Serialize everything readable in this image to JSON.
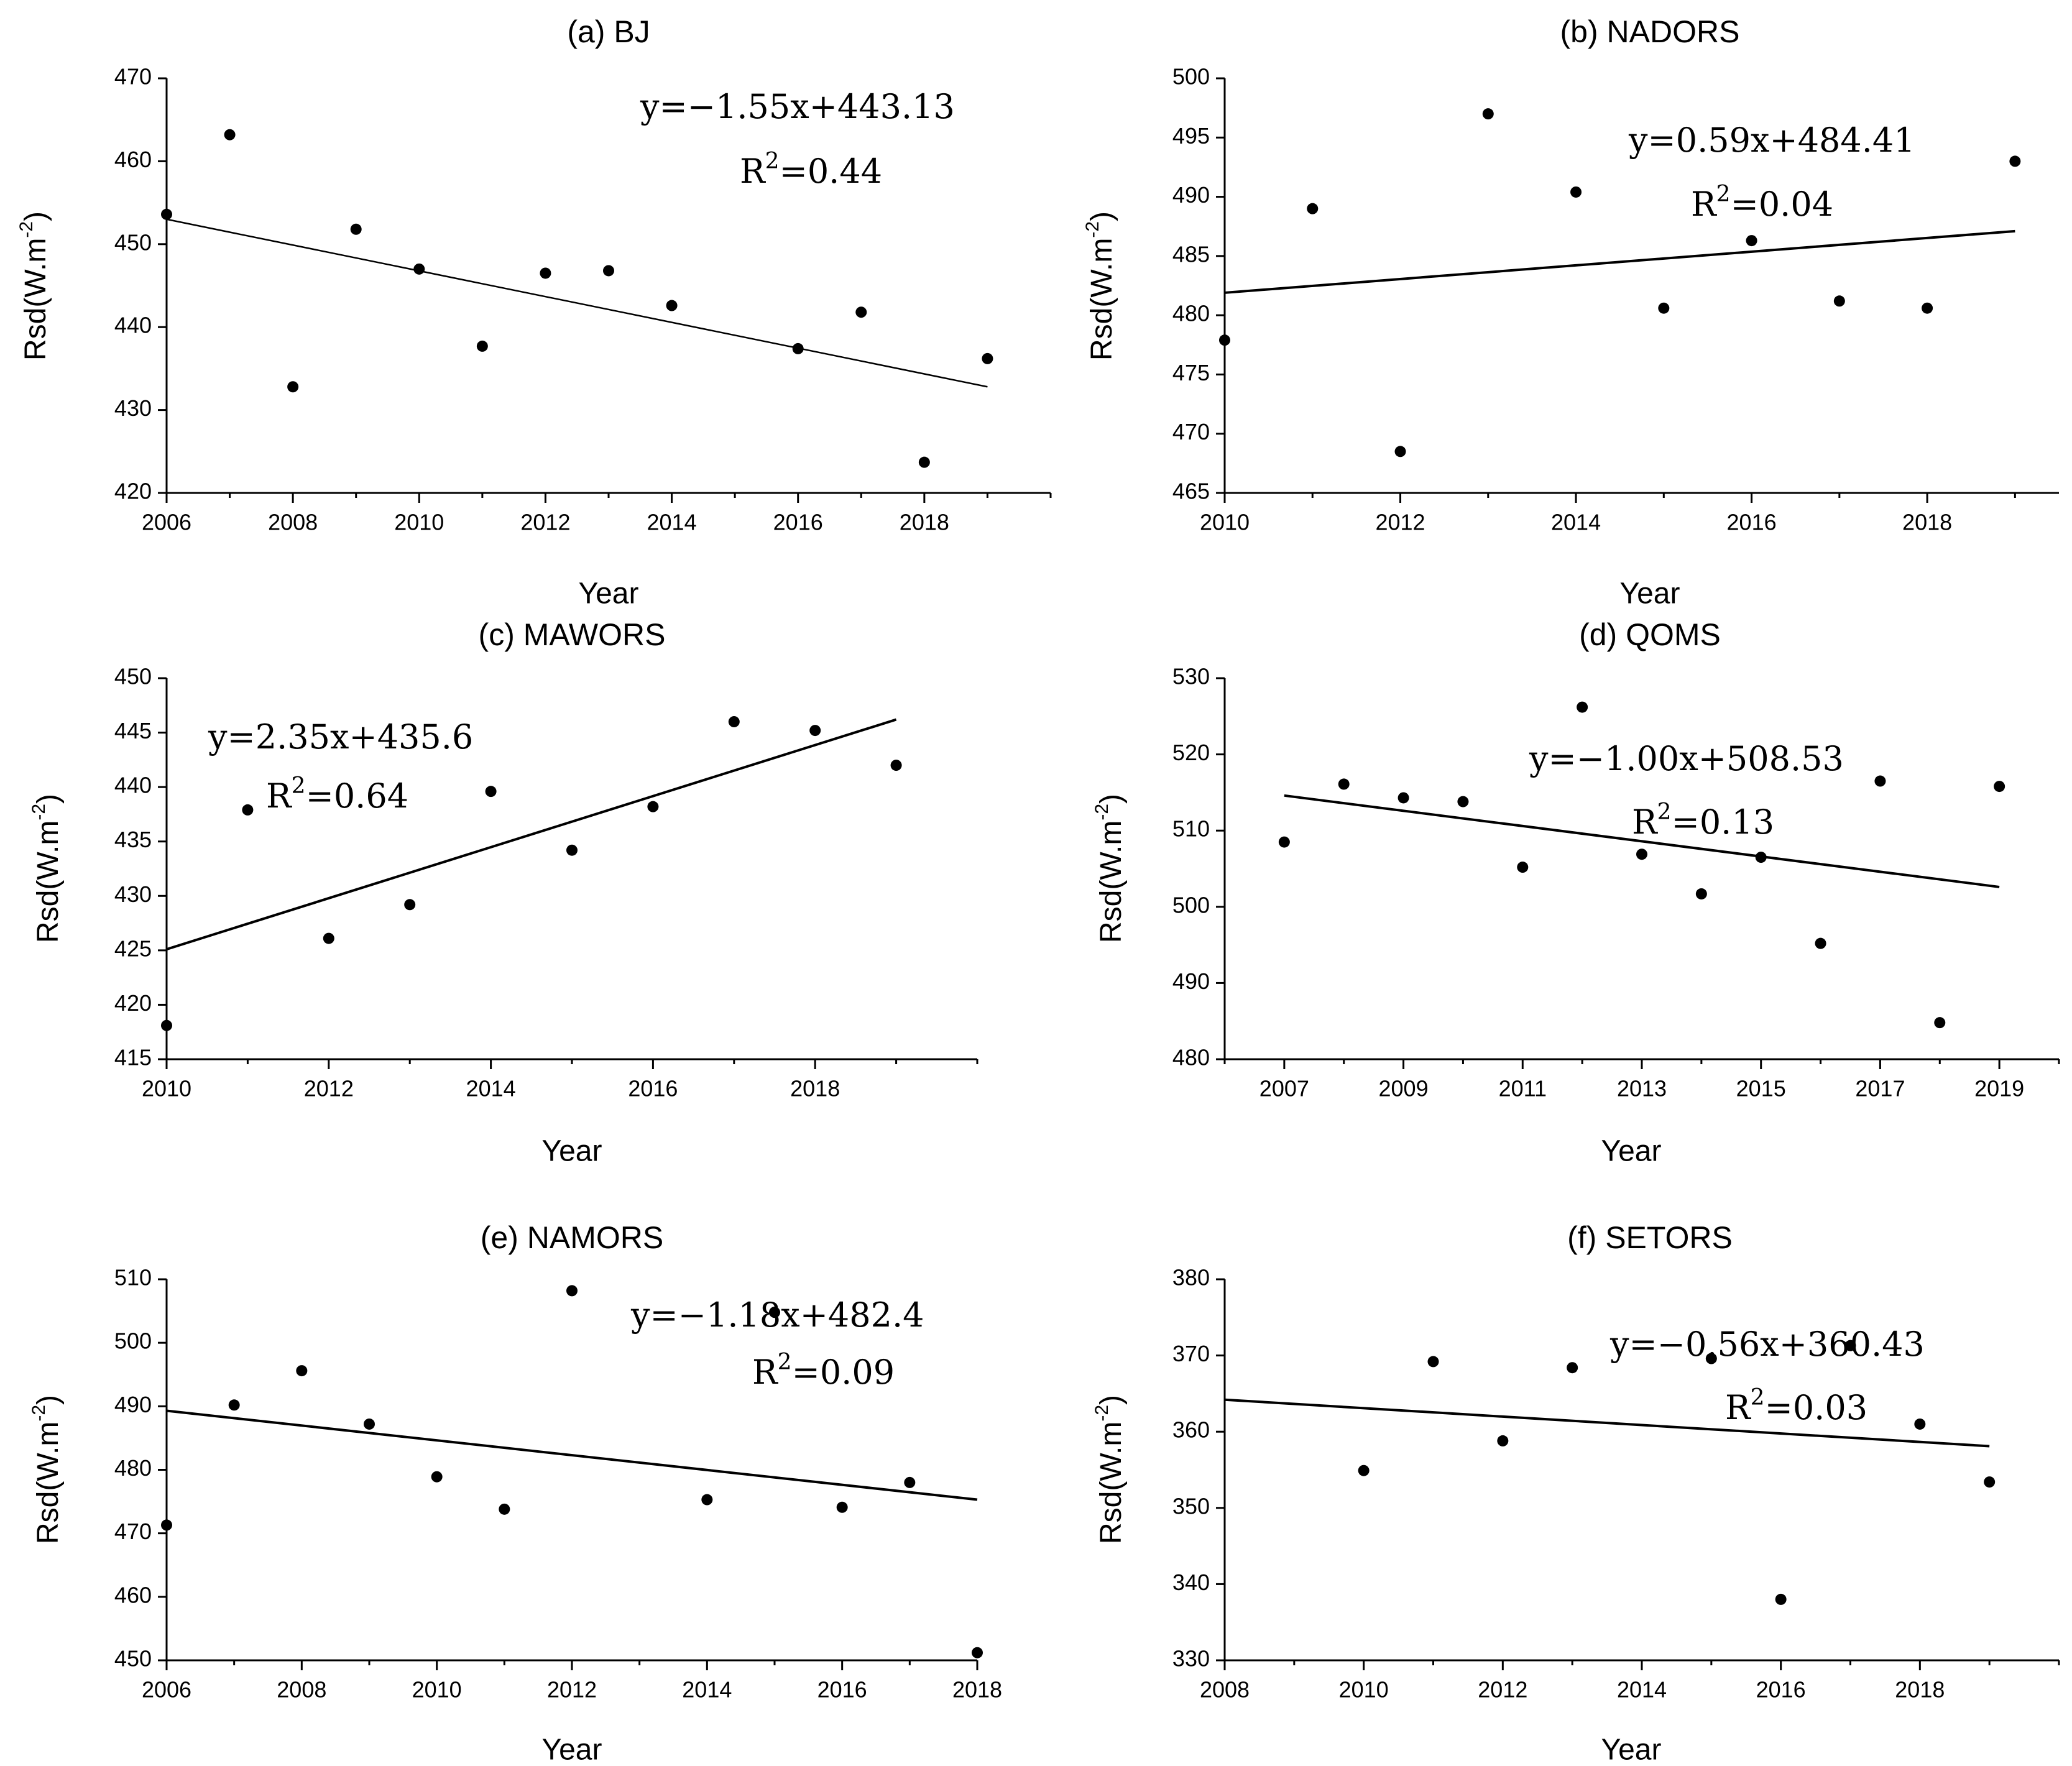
{
  "chart_data": [
    {
      "type": "scatter",
      "title": "(a) BJ",
      "xlabel": "Year",
      "ylabel": "Rsd(W.m",
      "ylabel_sup": "-2",
      "ylabel_close": ")",
      "xlim": [
        2006,
        2020
      ],
      "ylim": [
        420,
        470
      ],
      "xticks": [
        2006,
        2008,
        2010,
        2012,
        2014,
        2016,
        2018
      ],
      "yticks": [
        420,
        430,
        440,
        450,
        460,
        470
      ],
      "x": [
        2006,
        2007,
        2008,
        2009,
        2010,
        2011,
        2012,
        2013,
        2014,
        2016,
        2017,
        2018,
        2019
      ],
      "y": [
        453.6,
        463.2,
        432.8,
        451.8,
        447.0,
        437.7,
        446.5,
        446.8,
        442.6,
        437.4,
        441.8,
        423.7,
        436.2
      ],
      "trend": {
        "x": [
          2006,
          2019
        ],
        "y": [
          453.0,
          432.8
        ]
      },
      "equation": "y=−1.55x+443.13",
      "r2_label": "R",
      "r2_sup": "2",
      "r2_value": "=0.44"
    },
    {
      "type": "scatter",
      "title": "(b) NADORS",
      "xlabel": "Year",
      "ylabel": "Rsd(W.m",
      "ylabel_sup": "-2",
      "ylabel_close": ")",
      "xlim": [
        2010,
        2019.5
      ],
      "ylim": [
        465,
        500
      ],
      "xticks": [
        2010,
        2012,
        2014,
        2016,
        2018
      ],
      "yticks": [
        465,
        470,
        475,
        480,
        485,
        490,
        495,
        500
      ],
      "x": [
        2010,
        2011,
        2012,
        2013,
        2014,
        2015,
        2016,
        2017,
        2018,
        2019
      ],
      "y": [
        477.9,
        489.0,
        468.5,
        497.0,
        490.4,
        480.6,
        486.3,
        481.2,
        480.6,
        493.0
      ],
      "trend": {
        "x": [
          2010,
          2019
        ],
        "y": [
          481.9,
          487.1
        ]
      },
      "equation": "y=0.59x+484.41",
      "r2_label": "R",
      "r2_sup": "2",
      "r2_value": "=0.04"
    },
    {
      "type": "scatter",
      "title": "(c) MAWORS",
      "xlabel": "Year",
      "ylabel": "Rsd(W.m",
      "ylabel_sup": "-2",
      "ylabel_close": ")",
      "xlim": [
        2010,
        2020
      ],
      "ylim": [
        415,
        450
      ],
      "xticks": [
        2010,
        2012,
        2014,
        2016,
        2018
      ],
      "yticks": [
        415,
        420,
        425,
        430,
        435,
        440,
        445,
        450
      ],
      "x": [
        2010,
        2011,
        2012,
        2013,
        2014,
        2015,
        2016,
        2017,
        2018,
        2019
      ],
      "y": [
        418.1,
        437.9,
        426.1,
        429.2,
        439.6,
        434.2,
        438.2,
        446.0,
        445.2,
        442.0
      ],
      "trend": {
        "x": [
          2010,
          2019
        ],
        "y": [
          425.1,
          446.2
        ]
      },
      "equation": "y=2.35x+435.6",
      "r2_label": "R",
      "r2_sup": "2",
      "r2_value": "=0.64"
    },
    {
      "type": "scatter",
      "title": "(d) QOMS",
      "xlabel": "Year",
      "ylabel": "Rsd(W.m",
      "ylabel_sup": "-2",
      "ylabel_close": ")",
      "xlim": [
        2006,
        2020
      ],
      "ylim": [
        480,
        530
      ],
      "xticks": [
        2007,
        2009,
        2011,
        2013,
        2015,
        2017,
        2019
      ],
      "yticks": [
        480,
        490,
        500,
        510,
        520,
        530
      ],
      "x": [
        2007,
        2008,
        2009,
        2010,
        2011,
        2012,
        2013,
        2014,
        2015,
        2016,
        2017,
        2018,
        2019
      ],
      "y": [
        508.5,
        516.1,
        514.3,
        513.8,
        505.2,
        526.2,
        506.9,
        501.7,
        506.5,
        495.2,
        516.5,
        484.8,
        515.8
      ],
      "trend": {
        "x": [
          2007,
          2019
        ],
        "y": [
          514.6,
          502.6
        ]
      },
      "equation": "y=−1.00x+508.53",
      "r2_label": "R",
      "r2_sup": "2",
      "r2_value": "=0.13"
    },
    {
      "type": "scatter",
      "title": "(e) NAMORS",
      "xlabel": "Year",
      "ylabel": "Rsd(W.m",
      "ylabel_sup": "-2",
      "ylabel_close": ")",
      "xlim": [
        2006,
        2018
      ],
      "ylim": [
        450,
        510
      ],
      "xticks": [
        2006,
        2008,
        2010,
        2012,
        2014,
        2016,
        2018
      ],
      "yticks": [
        450,
        460,
        470,
        480,
        490,
        500,
        510
      ],
      "x": [
        2006,
        2007,
        2008,
        2009,
        2010,
        2011,
        2012,
        2014,
        2015,
        2016,
        2017,
        2018
      ],
      "y": [
        471.3,
        490.2,
        495.6,
        487.2,
        478.9,
        473.8,
        508.2,
        475.3,
        504.8,
        474.1,
        478.0,
        451.2
      ],
      "trend": {
        "x": [
          2006,
          2018
        ],
        "y": [
          489.3,
          475.3
        ]
      },
      "equation": "y=−1.18x+482.4",
      "r2_label": "R",
      "r2_sup": "2",
      "r2_value": "=0.09"
    },
    {
      "type": "scatter",
      "title": "(f) SETORS",
      "xlabel": "Year",
      "ylabel": "Rsd(W.m",
      "ylabel_sup": "-2",
      "ylabel_close": ")",
      "xlim": [
        2008,
        2020
      ],
      "ylim": [
        330,
        380
      ],
      "xticks": [
        2008,
        2010,
        2012,
        2014,
        2016,
        2018
      ],
      "yticks": [
        330,
        340,
        350,
        360,
        370,
        380
      ],
      "x": [
        2010,
        2011,
        2012,
        2013,
        2015,
        2016,
        2017,
        2018,
        2019
      ],
      "y": [
        354.9,
        369.2,
        358.8,
        368.4,
        369.6,
        338.0,
        371.3,
        361.0,
        353.4
      ],
      "trend": {
        "x": [
          2008,
          2019
        ],
        "y": [
          364.2,
          358.1
        ]
      },
      "equation": "y=−0.56x+360.43",
      "r2_label": "R",
      "r2_sup": "2",
      "r2_value": "=0.03"
    }
  ]
}
